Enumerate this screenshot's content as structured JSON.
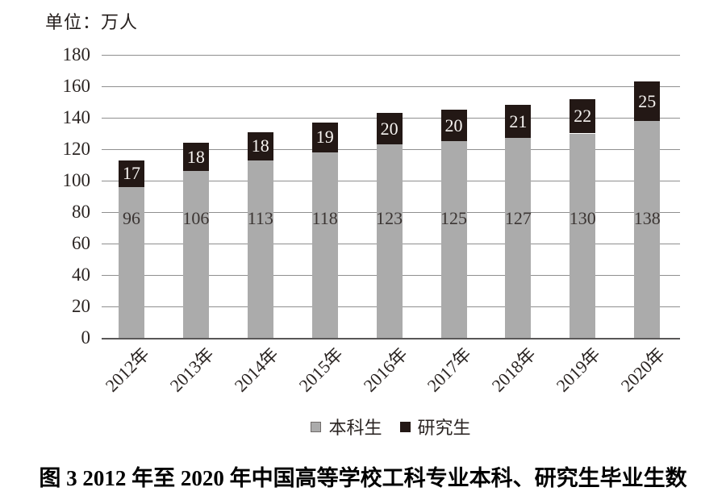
{
  "unit_label": "单位：万人",
  "caption": "图 3  2012 年至 2020 年中国高等学校工科专业本科、研究生毕业生数",
  "legend": {
    "items": [
      {
        "label": "本科生",
        "color": "#ababab",
        "border": "#6f6b69"
      },
      {
        "label": "研究生",
        "color": "#231815",
        "border": "#231815"
      }
    ]
  },
  "colors": {
    "undergrad_bar": "#ababab",
    "grad_bar": "#231815",
    "gridline": "#8f8f8f",
    "axis_line": "#595757",
    "undergrad_value_text": "#3b3533",
    "grad_value_text": "#f7f4f1",
    "tick_text": "#2b2523",
    "background": "#ffffff"
  },
  "chart_data": {
    "type": "bar",
    "stacked": true,
    "title": "图 3  2012 年至 2020 年中国高等学校工科专业本科、研究生毕业生数",
    "unit": "万人",
    "categories": [
      "2012年",
      "2013年",
      "2014年",
      "2015年",
      "2016年",
      "2017年",
      "2018年",
      "2019年",
      "2020年"
    ],
    "series": [
      {
        "name": "本科生",
        "color": "#ababab",
        "values": [
          96,
          106,
          113,
          118,
          123,
          125,
          127,
          130,
          138
        ]
      },
      {
        "name": "研究生",
        "color": "#231815",
        "values": [
          17,
          18,
          18,
          19,
          20,
          20,
          21,
          22,
          25
        ]
      }
    ],
    "totals": [
      113,
      124,
      131,
      137,
      143,
      145,
      148,
      152,
      163
    ],
    "xlabel": "",
    "ylabel": "单位：万人",
    "ylim": [
      0,
      180
    ],
    "yticks": [
      0,
      20,
      40,
      60,
      80,
      100,
      120,
      140,
      160,
      180
    ],
    "grid": true,
    "legend_position": "bottom",
    "value_labels": "inside"
  }
}
